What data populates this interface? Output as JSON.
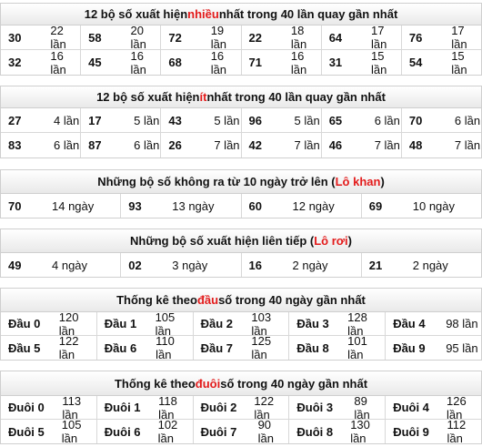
{
  "most_frequent": {
    "title_pre": "12 bộ số xuất hiện ",
    "title_hl": "nhiều",
    "title_post": " nhất trong 40 lần quay gần nhất",
    "rows": [
      [
        {
          "num": "30",
          "count": "22 lần"
        },
        {
          "num": "58",
          "count": "20 lần"
        },
        {
          "num": "72",
          "count": "19 lần"
        },
        {
          "num": "22",
          "count": "18 lần"
        },
        {
          "num": "64",
          "count": "17 lần"
        },
        {
          "num": "76",
          "count": "17 lần"
        }
      ],
      [
        {
          "num": "32",
          "count": "16 lần"
        },
        {
          "num": "45",
          "count": "16 lần"
        },
        {
          "num": "68",
          "count": "16 lần"
        },
        {
          "num": "71",
          "count": "16 lần"
        },
        {
          "num": "31",
          "count": "15 lần"
        },
        {
          "num": "54",
          "count": "15 lần"
        }
      ]
    ]
  },
  "least_frequent": {
    "title_pre": "12 bộ số xuất hiện ",
    "title_hl": "ít",
    "title_post": " nhất trong 40 lần quay gần nhất",
    "rows": [
      [
        {
          "num": "27",
          "count": "4 lần"
        },
        {
          "num": "17",
          "count": "5 lần"
        },
        {
          "num": "43",
          "count": "5 lần"
        },
        {
          "num": "96",
          "count": "5 lần"
        },
        {
          "num": "65",
          "count": "6 lần"
        },
        {
          "num": "70",
          "count": "6 lần"
        }
      ],
      [
        {
          "num": "83",
          "count": "6 lần"
        },
        {
          "num": "87",
          "count": "6 lần"
        },
        {
          "num": "26",
          "count": "7 lần"
        },
        {
          "num": "42",
          "count": "7 lần"
        },
        {
          "num": "46",
          "count": "7 lần"
        },
        {
          "num": "48",
          "count": "7 lần"
        }
      ]
    ]
  },
  "lo_khan": {
    "title_pre": "Những bộ số không ra từ 10 ngày trở lên (",
    "title_hl": "Lô khan",
    "title_post": ")",
    "rows": [
      [
        {
          "num": "70",
          "count": "14 ngày"
        },
        {
          "num": "93",
          "count": "13 ngày"
        },
        {
          "num": "60",
          "count": "12 ngày"
        },
        {
          "num": "69",
          "count": "10 ngày"
        }
      ]
    ]
  },
  "lo_roi": {
    "title_pre": "Những bộ số xuất hiện liên tiếp (",
    "title_hl": "Lô rơi",
    "title_post": ")",
    "rows": [
      [
        {
          "num": "49",
          "count": "4 ngày"
        },
        {
          "num": "02",
          "count": "3 ngày"
        },
        {
          "num": "16",
          "count": "2 ngày"
        },
        {
          "num": "21",
          "count": "2 ngày"
        }
      ]
    ]
  },
  "dau_stats": {
    "title_pre": "Thống kê theo ",
    "title_hl": "đầu",
    "title_post": " số trong 40 ngày gần nhất",
    "rows": [
      [
        {
          "num": "Đầu 0",
          "count": "120 lần"
        },
        {
          "num": "Đầu 1",
          "count": "105 lần"
        },
        {
          "num": "Đầu 2",
          "count": "103 lần"
        },
        {
          "num": "Đầu 3",
          "count": "128 lần"
        },
        {
          "num": "Đầu 4",
          "count": "98 lần"
        }
      ],
      [
        {
          "num": "Đầu 5",
          "count": "122 lần"
        },
        {
          "num": "Đầu 6",
          "count": "110 lần"
        },
        {
          "num": "Đầu 7",
          "count": "125 lần"
        },
        {
          "num": "Đầu 8",
          "count": "101 lần"
        },
        {
          "num": "Đầu 9",
          "count": "95 lần"
        }
      ]
    ]
  },
  "duoi_stats": {
    "title_pre": "Thống kê theo ",
    "title_hl": "đuôi",
    "title_post": " số trong 40 ngày gần nhất",
    "rows": [
      [
        {
          "num": "Đuôi 0",
          "count": "113 lần"
        },
        {
          "num": "Đuôi 1",
          "count": "118 lần"
        },
        {
          "num": "Đuôi 2",
          "count": "122 lần"
        },
        {
          "num": "Đuôi 3",
          "count": "89 lần"
        },
        {
          "num": "Đuôi 4",
          "count": "126 lần"
        }
      ],
      [
        {
          "num": "Đuôi 5",
          "count": "105 lần"
        },
        {
          "num": "Đuôi 6",
          "count": "102 lần"
        },
        {
          "num": "Đuôi 7",
          "count": "90 lần"
        },
        {
          "num": "Đuôi 8",
          "count": "130 lần"
        },
        {
          "num": "Đuôi 9",
          "count": "112 lần"
        }
      ]
    ]
  },
  "colors": {
    "highlight": "#e31b1b",
    "border": "#cfcfcf"
  }
}
